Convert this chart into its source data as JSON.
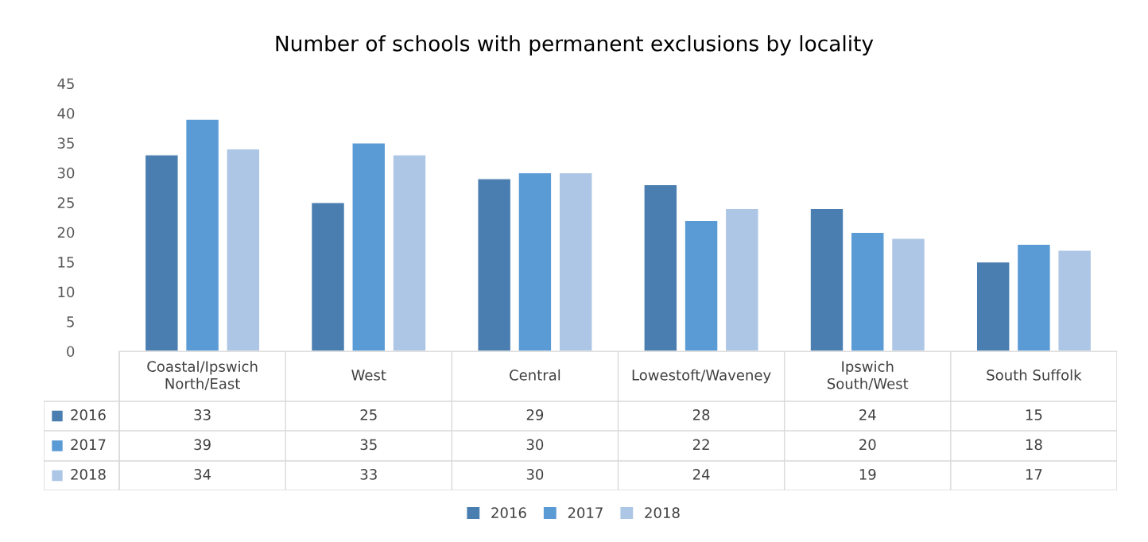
{
  "chart_data": {
    "type": "bar",
    "title": "Number of schools with permanent exclusions by locality",
    "categories": [
      "Coastal/Ipswich North/East",
      "West",
      "Central",
      "Lowestoft/Waveney",
      "Ipswich South/West",
      "South Suffolk"
    ],
    "series": [
      {
        "name": "2016",
        "color": "#4a7eb0",
        "values": [
          33,
          25,
          29,
          28,
          24,
          15
        ]
      },
      {
        "name": "2017",
        "color": "#5b9bd5",
        "values": [
          39,
          35,
          30,
          22,
          20,
          18
        ]
      },
      {
        "name": "2018",
        "color": "#adc6e5",
        "values": [
          34,
          33,
          30,
          24,
          19,
          17
        ]
      }
    ],
    "ylim": [
      0,
      45
    ],
    "yticks": [
      0,
      5,
      10,
      15,
      20,
      25,
      30,
      35,
      40,
      45
    ],
    "grid": false,
    "legend": "bottom",
    "data_labels": true
  }
}
